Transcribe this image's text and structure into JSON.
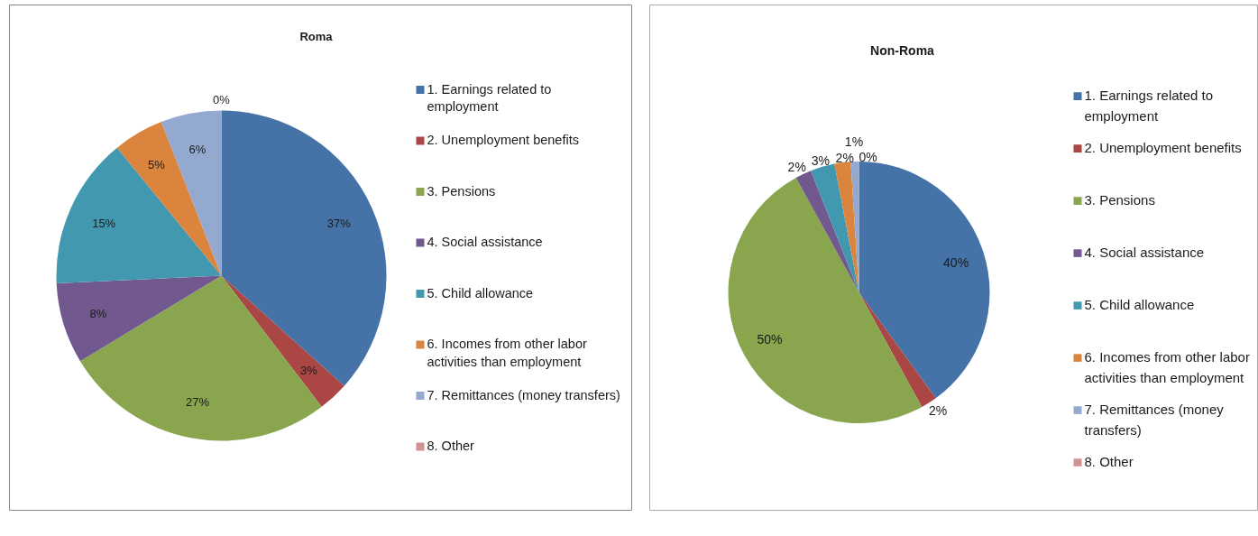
{
  "chart_data": [
    {
      "type": "pie",
      "title": "Roma",
      "categories": [
        "1. Earnings related to employment",
        "2. Unemployment benefits",
        "3. Pensions",
        "4. Social assistance",
        "5. Child allowance",
        "6. Incomes from other labor activities than employment",
        "7. Remittances (money transfers)",
        "8. Other"
      ],
      "values": [
        37,
        3,
        27,
        8,
        15,
        5,
        6,
        0
      ],
      "colors": [
        "#4572a7",
        "#aa4643",
        "#89a54e",
        "#71588f",
        "#4198af",
        "#db843d",
        "#93a9cf",
        "#d19392"
      ],
      "value_labels": [
        "37%",
        "3%",
        "27%",
        "8%",
        "15%",
        "5%",
        "6%",
        "0%"
      ],
      "legend": "right"
    },
    {
      "type": "pie",
      "title": "Non-Roma",
      "categories": [
        "1. Earnings related to employment",
        "2. Unemployment benefits",
        "3. Pensions",
        "4. Social assistance",
        "5. Child allowance",
        "6. Incomes from other labor activities than employment",
        "7. Remittances (money transfers)",
        "8. Other"
      ],
      "values": [
        40,
        2,
        50,
        2,
        3,
        2,
        1,
        0
      ],
      "colors": [
        "#4572a7",
        "#aa4643",
        "#89a54e",
        "#71588f",
        "#4198af",
        "#db843d",
        "#93a9cf",
        "#d19392"
      ],
      "value_labels": [
        "40%",
        "2%",
        "50%",
        "2%",
        "3%",
        "2%",
        "1%",
        "0%"
      ],
      "legend": "right"
    }
  ]
}
